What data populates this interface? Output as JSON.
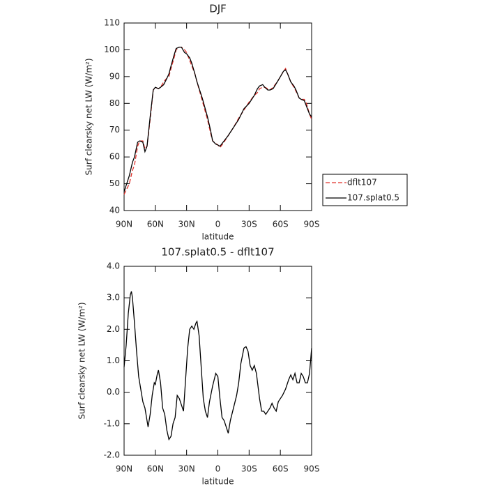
{
  "chart_data": [
    {
      "type": "line",
      "title": "DJF",
      "x_label": "latitude",
      "y_label": "Surf clearsky net LW (W/m²)",
      "x": [
        90,
        85,
        82,
        80,
        77,
        75,
        72,
        70,
        68,
        65,
        62,
        60,
        57,
        55,
        52,
        50,
        47,
        45,
        42,
        40,
        37,
        35,
        32,
        30,
        27,
        25,
        22,
        20,
        15,
        10,
        7,
        5,
        2,
        0,
        -2,
        -5,
        -10,
        -15,
        -20,
        -25,
        -30,
        -35,
        -38,
        -40,
        -43,
        -45,
        -48,
        -50,
        -53,
        -57,
        -60,
        -63,
        -65,
        -67,
        -70,
        -73,
        -75,
        -78,
        -80,
        -83,
        -85,
        -88,
        -90
      ],
      "series": [
        {
          "name": "dflt107",
          "color": "#e0302a",
          "style": "dashed",
          "values": [
            46,
            50,
            55,
            57,
            64,
            66,
            66,
            63,
            64,
            74,
            85,
            86,
            85.5,
            86,
            88,
            89,
            90,
            93,
            97,
            100,
            101,
            101,
            100,
            99,
            96,
            94,
            91,
            88,
            81,
            74,
            69,
            66,
            65,
            64.5,
            63.5,
            65,
            68,
            71,
            74.5,
            77.5,
            80.5,
            83,
            84,
            85.5,
            86,
            86,
            85.5,
            85,
            86,
            88,
            90,
            92,
            93,
            91,
            88,
            86,
            84.5,
            82,
            81.5,
            81.5,
            80,
            76,
            74
          ]
        },
        {
          "name": "107.splat0.5",
          "color": "#000000",
          "style": "solid",
          "values": [
            47,
            53,
            58,
            60,
            65.5,
            66,
            65.5,
            62,
            64,
            75,
            85,
            86,
            85.5,
            86,
            87,
            88.5,
            91,
            94,
            98,
            100.5,
            101,
            101,
            99,
            98.5,
            97,
            95,
            91,
            88,
            82,
            75,
            70,
            66,
            64.8,
            64.5,
            64,
            65.5,
            68,
            71,
            74,
            78,
            80,
            83,
            85.5,
            86.5,
            87,
            86,
            85,
            85,
            85.5,
            88,
            90,
            92,
            92.5,
            91,
            88,
            86.5,
            85,
            82,
            81.5,
            81,
            79,
            76,
            75
          ]
        }
      ],
      "xlim": [
        90,
        -90
      ],
      "xticks": [
        {
          "value": 90,
          "label": "90N"
        },
        {
          "value": 60,
          "label": "60N"
        },
        {
          "value": 30,
          "label": "30N"
        },
        0,
        {
          "value": -30,
          "label": "30S"
        },
        {
          "value": -60,
          "label": "60S"
        },
        {
          "value": -90,
          "label": "90S"
        }
      ],
      "ylim": [
        40,
        110
      ],
      "yticks": [
        40,
        50,
        60,
        70,
        80,
        90,
        100,
        110
      ]
    },
    {
      "type": "line",
      "title": "107.splat0.5 - dflt107",
      "x_label": "latitude",
      "y_label": "Surf clearsky net LW (W/m²)",
      "x": [
        90,
        88,
        86,
        84,
        83,
        82,
        80,
        78,
        76,
        74,
        72,
        70,
        68,
        67,
        65,
        63,
        61,
        60,
        58,
        57,
        55,
        53,
        51,
        49,
        47,
        45,
        43,
        41,
        39,
        37,
        35,
        33,
        31,
        29,
        27,
        25,
        23,
        21,
        20,
        18,
        16,
        14,
        12,
        10,
        8,
        5,
        2,
        0,
        -2,
        -4,
        -6,
        -8,
        -10,
        -12,
        -15,
        -18,
        -20,
        -22,
        -25,
        -27,
        -29,
        -31,
        -33,
        -35,
        -37,
        -40,
        -42,
        -44,
        -46,
        -48,
        -50,
        -52,
        -54,
        -56,
        -58,
        -60,
        -62,
        -65,
        -68,
        -70,
        -72,
        -74,
        -76,
        -78,
        -80,
        -82,
        -84,
        -86,
        -88,
        -90
      ],
      "series": [
        {
          "name": "107.splat0.5 - dflt107",
          "color": "#000000",
          "style": "solid",
          "values": [
            0.8,
            1.5,
            2.5,
            3.1,
            3.2,
            3.0,
            2.2,
            1.3,
            0.5,
            0.1,
            -0.3,
            -0.5,
            -0.9,
            -1.1,
            -0.7,
            -0.1,
            0.3,
            0.25,
            0.6,
            0.7,
            0.3,
            -0.5,
            -0.7,
            -1.2,
            -1.5,
            -1.4,
            -1.0,
            -0.8,
            -0.1,
            -0.2,
            -0.4,
            -0.6,
            0.4,
            1.4,
            2.0,
            2.1,
            2.0,
            2.2,
            2.25,
            1.8,
            0.8,
            -0.2,
            -0.6,
            -0.8,
            -0.3,
            0.2,
            0.6,
            0.5,
            -0.2,
            -0.8,
            -0.9,
            -1.1,
            -1.3,
            -0.9,
            -0.5,
            -0.1,
            0.3,
            0.9,
            1.4,
            1.45,
            1.3,
            0.85,
            0.7,
            0.85,
            0.6,
            -0.2,
            -0.6,
            -0.6,
            -0.7,
            -0.6,
            -0.5,
            -0.35,
            -0.5,
            -0.6,
            -0.3,
            -0.2,
            -0.1,
            0.1,
            0.4,
            0.55,
            0.4,
            0.6,
            0.3,
            0.3,
            0.6,
            0.5,
            0.3,
            0.3,
            0.6,
            1.4
          ]
        }
      ],
      "xlim": [
        90,
        -90
      ],
      "xticks": [
        {
          "value": 90,
          "label": "90N"
        },
        {
          "value": 60,
          "label": "60N"
        },
        {
          "value": 30,
          "label": "30N"
        },
        0,
        {
          "value": -30,
          "label": "30S"
        },
        {
          "value": -60,
          "label": "60S"
        },
        {
          "value": -90,
          "label": "90S"
        }
      ],
      "ylim": [
        -2,
        4
      ],
      "yticks": [
        {
          "value": -2,
          "label": "-2.0"
        },
        {
          "value": -1,
          "label": "-1.0"
        },
        {
          "value": 0,
          "label": "0.0"
        },
        {
          "value": 1,
          "label": "1.0"
        },
        {
          "value": 2,
          "label": "2.0"
        },
        {
          "value": 3,
          "label": "3.0"
        },
        {
          "value": 4,
          "label": "4.0"
        }
      ]
    }
  ]
}
